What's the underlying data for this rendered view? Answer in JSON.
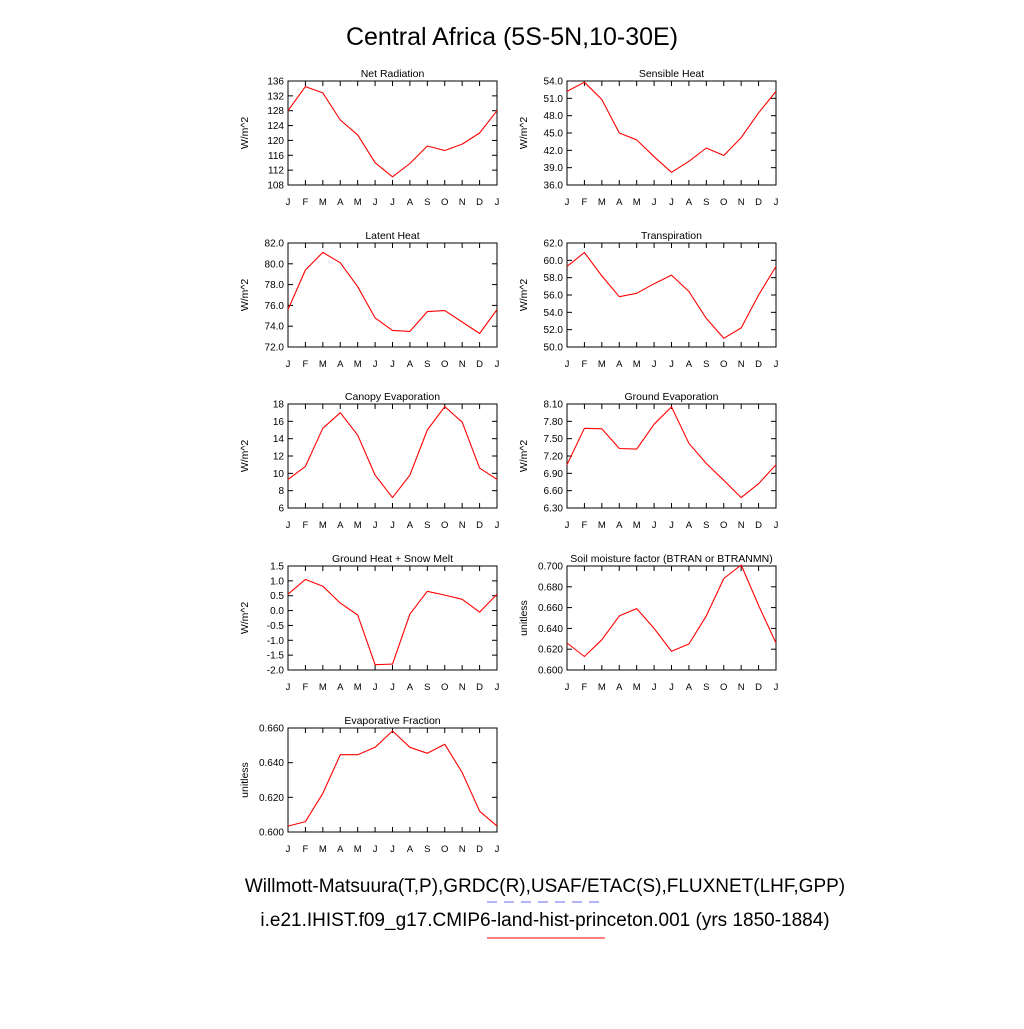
{
  "title": "Central Africa (5S-5N,10-30E)",
  "legend": {
    "obs_label": "Willmott-Matsuura(T,P),GRDC(R),USAF/ETAC(S),FLUXNET(LHF,GPP)",
    "model_label": "i.e21.IHIST.f09_g17.CMIP6-land-hist-princeton.001 (yrs 1850-1884)",
    "obs_color": "#6a6af0",
    "model_color": "#ff0000"
  },
  "chart_data": [
    {
      "type": "line",
      "title": "Net Radiation",
      "ylabel": "W/m^2",
      "categories": [
        "J",
        "F",
        "M",
        "A",
        "M",
        "J",
        "J",
        "A",
        "S",
        "O",
        "N",
        "D",
        "J"
      ],
      "ylim": [
        108,
        136
      ],
      "yticks": [
        "108",
        "112",
        "116",
        "120",
        "124",
        "128",
        "132",
        "136"
      ],
      "values": [
        128.0,
        134.5,
        132.8,
        125.5,
        121.5,
        114.0,
        110.2,
        113.8,
        118.5,
        117.3,
        119.0,
        122.0,
        128.0
      ]
    },
    {
      "type": "line",
      "title": "Sensible Heat",
      "ylabel": "W/m^2",
      "categories": [
        "J",
        "F",
        "M",
        "A",
        "M",
        "J",
        "J",
        "A",
        "S",
        "O",
        "N",
        "D",
        "J"
      ],
      "ylim": [
        36,
        54
      ],
      "yticks": [
        "36.0",
        "39.0",
        "42.0",
        "45.0",
        "48.0",
        "51.0",
        "54.0"
      ],
      "values": [
        52.2,
        53.8,
        50.8,
        45.0,
        43.8,
        40.9,
        38.2,
        40.1,
        42.4,
        41.1,
        44.2,
        48.5,
        52.2
      ]
    },
    {
      "type": "line",
      "title": "Latent Heat",
      "ylabel": "W/m^2",
      "categories": [
        "J",
        "F",
        "M",
        "A",
        "M",
        "J",
        "J",
        "A",
        "S",
        "O",
        "N",
        "D",
        "J"
      ],
      "ylim": [
        72,
        82
      ],
      "yticks": [
        "72.0",
        "74.0",
        "76.0",
        "78.0",
        "80.0",
        "82.0"
      ],
      "values": [
        75.6,
        79.4,
        81.1,
        80.1,
        77.8,
        74.8,
        73.6,
        73.5,
        75.4,
        75.5,
        74.4,
        73.3,
        75.6
      ]
    },
    {
      "type": "line",
      "title": "Transpiration",
      "ylabel": "W/m^2",
      "categories": [
        "J",
        "F",
        "M",
        "A",
        "M",
        "J",
        "J",
        "A",
        "S",
        "O",
        "N",
        "D",
        "J"
      ],
      "ylim": [
        50,
        62
      ],
      "yticks": [
        "50.0",
        "52.0",
        "54.0",
        "56.0",
        "58.0",
        "60.0",
        "62.0"
      ],
      "values": [
        59.3,
        60.9,
        58.2,
        55.8,
        56.2,
        57.3,
        58.3,
        56.4,
        53.3,
        51.0,
        52.2,
        56.0,
        59.3
      ]
    },
    {
      "type": "line",
      "title": "Canopy Evaporation",
      "ylabel": "W/m^2",
      "categories": [
        "J",
        "F",
        "M",
        "A",
        "M",
        "J",
        "J",
        "A",
        "S",
        "O",
        "N",
        "D",
        "J"
      ],
      "ylim": [
        6,
        18
      ],
      "yticks": [
        "6",
        "8",
        "10",
        "12",
        "14",
        "16",
        "18"
      ],
      "values": [
        9.3,
        10.8,
        15.2,
        17.0,
        14.4,
        9.8,
        7.2,
        9.8,
        15.0,
        17.7,
        15.9,
        10.6,
        9.3
      ]
    },
    {
      "type": "line",
      "title": "Ground Evaporation",
      "ylabel": "W/m^2",
      "categories": [
        "J",
        "F",
        "M",
        "A",
        "M",
        "J",
        "J",
        "A",
        "S",
        "O",
        "N",
        "D",
        "J"
      ],
      "ylim": [
        6.3,
        8.1
      ],
      "yticks": [
        "6.30",
        "6.60",
        "6.90",
        "7.20",
        "7.50",
        "7.80",
        "8.10"
      ],
      "values": [
        7.05,
        7.68,
        7.67,
        7.33,
        7.32,
        7.75,
        8.05,
        7.42,
        7.07,
        6.78,
        6.48,
        6.72,
        7.05
      ]
    },
    {
      "type": "line",
      "title": "Ground Heat + Snow Melt",
      "ylabel": "W/m^2",
      "categories": [
        "J",
        "F",
        "M",
        "A",
        "M",
        "J",
        "J",
        "A",
        "S",
        "O",
        "N",
        "D",
        "J"
      ],
      "ylim": [
        -2.0,
        1.5
      ],
      "yticks": [
        "-2.0",
        "-1.5",
        "-1.0",
        "-0.5",
        "0.0",
        "0.5",
        "1.0",
        "1.5"
      ],
      "values": [
        0.55,
        1.05,
        0.82,
        0.25,
        -0.15,
        -1.82,
        -1.8,
        -0.12,
        0.65,
        0.52,
        0.38,
        -0.05,
        0.55
      ]
    },
    {
      "type": "line",
      "title": "Soil moisture factor (BTRAN or BTRANMN)",
      "ylabel": "unitless",
      "categories": [
        "J",
        "F",
        "M",
        "A",
        "M",
        "J",
        "J",
        "A",
        "S",
        "O",
        "N",
        "D",
        "J"
      ],
      "ylim": [
        0.6,
        0.7
      ],
      "yticks": [
        "0.600",
        "0.620",
        "0.640",
        "0.660",
        "0.680",
        "0.700"
      ],
      "values": [
        0.626,
        0.613,
        0.629,
        0.652,
        0.659,
        0.64,
        0.618,
        0.625,
        0.652,
        0.688,
        0.701,
        0.662,
        0.626
      ]
    },
    {
      "type": "line",
      "title": "Evaporative Fraction",
      "ylabel": "unitless",
      "categories": [
        "J",
        "F",
        "M",
        "A",
        "M",
        "J",
        "J",
        "A",
        "S",
        "O",
        "N",
        "D",
        "J"
      ],
      "ylim": [
        0.59,
        0.66
      ],
      "yticks": [
        "0.600",
        "0.620",
        "0.640",
        "0.660"
      ],
      "values": [
        0.594,
        0.597,
        0.616,
        0.642,
        0.642,
        0.647,
        0.658,
        0.647,
        0.643,
        0.649,
        0.63,
        0.604,
        0.594
      ]
    }
  ]
}
